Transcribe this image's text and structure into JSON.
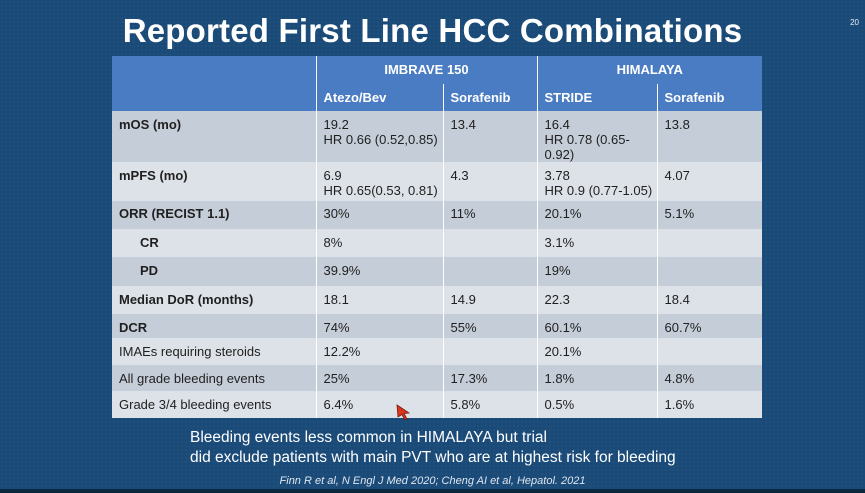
{
  "slide": {
    "title": "Reported First Line HCC Combinations",
    "number": "20",
    "note_line1": "Bleeding events less common in HIMALAYA but trial",
    "note_line2": "did exclude patients with main PVT who are at highest risk for bleeding",
    "citation": "Finn R et al, N Engl J Med 2020; Cheng AI et al, Hepatol. 2021"
  },
  "table": {
    "groups": [
      "IMBRAVE 150",
      "HIMALAYA"
    ],
    "columns": [
      "Atezo/Bev",
      "Sorafenib",
      "STRIDE",
      "Sorafenib"
    ],
    "rows": [
      {
        "label": "mOS (mo)",
        "cells": [
          [
            "19.2",
            "HR 0.66 (0.52,0.85)"
          ],
          [
            "13.4"
          ],
          [
            "16.4",
            "HR 0.78 (0.65-0.92)"
          ],
          [
            "13.8"
          ]
        ]
      },
      {
        "label": "mPFS (mo)",
        "cells": [
          [
            "6.9",
            "HR 0.65(0.53, 0.81)"
          ],
          [
            "4.3"
          ],
          [
            "3.78",
            "HR 0.9 (0.77-1.05)"
          ],
          [
            "4.07"
          ]
        ]
      },
      {
        "label": "ORR (RECIST 1.1)",
        "cells": [
          [
            "30%"
          ],
          [
            "11%"
          ],
          [
            "20.1%"
          ],
          [
            "5.1%"
          ]
        ]
      },
      {
        "label": "CR",
        "cells": [
          [
            "8%"
          ],
          [
            ""
          ],
          [
            "3.1%"
          ],
          [
            ""
          ]
        ]
      },
      {
        "label": "PD",
        "cells": [
          [
            "39.9%"
          ],
          [
            ""
          ],
          [
            "19%"
          ],
          [
            ""
          ]
        ]
      },
      {
        "label": "Median DoR (months)",
        "cells": [
          [
            "18.1"
          ],
          [
            "14.9"
          ],
          [
            "22.3"
          ],
          [
            "18.4"
          ]
        ]
      },
      {
        "label": "DCR",
        "cells": [
          [
            "74%"
          ],
          [
            "55%"
          ],
          [
            "60.1%"
          ],
          [
            "60.7%"
          ]
        ]
      }
    ]
  },
  "safety_table": {
    "rows": [
      {
        "label": "IMAEs requiring steroids",
        "cells": [
          "12.2%",
          "",
          "20.1%",
          ""
        ]
      },
      {
        "label": "All grade bleeding events",
        "cells": [
          "25%",
          "17.3%",
          "1.8%",
          "4.8%"
        ]
      },
      {
        "label": "Grade 3/4 bleeding events",
        "cells": [
          "6.4%",
          "5.8%",
          "0.5%",
          "1.6%"
        ]
      }
    ]
  },
  "colors": {
    "background": "#1a4a78",
    "header": "#4a7cc4",
    "row_dark": "#c5cdd8",
    "row_light": "#dde2e8",
    "cursor": "#d9361b"
  },
  "icons": {
    "cursor": "mouse-pointer-icon"
  }
}
